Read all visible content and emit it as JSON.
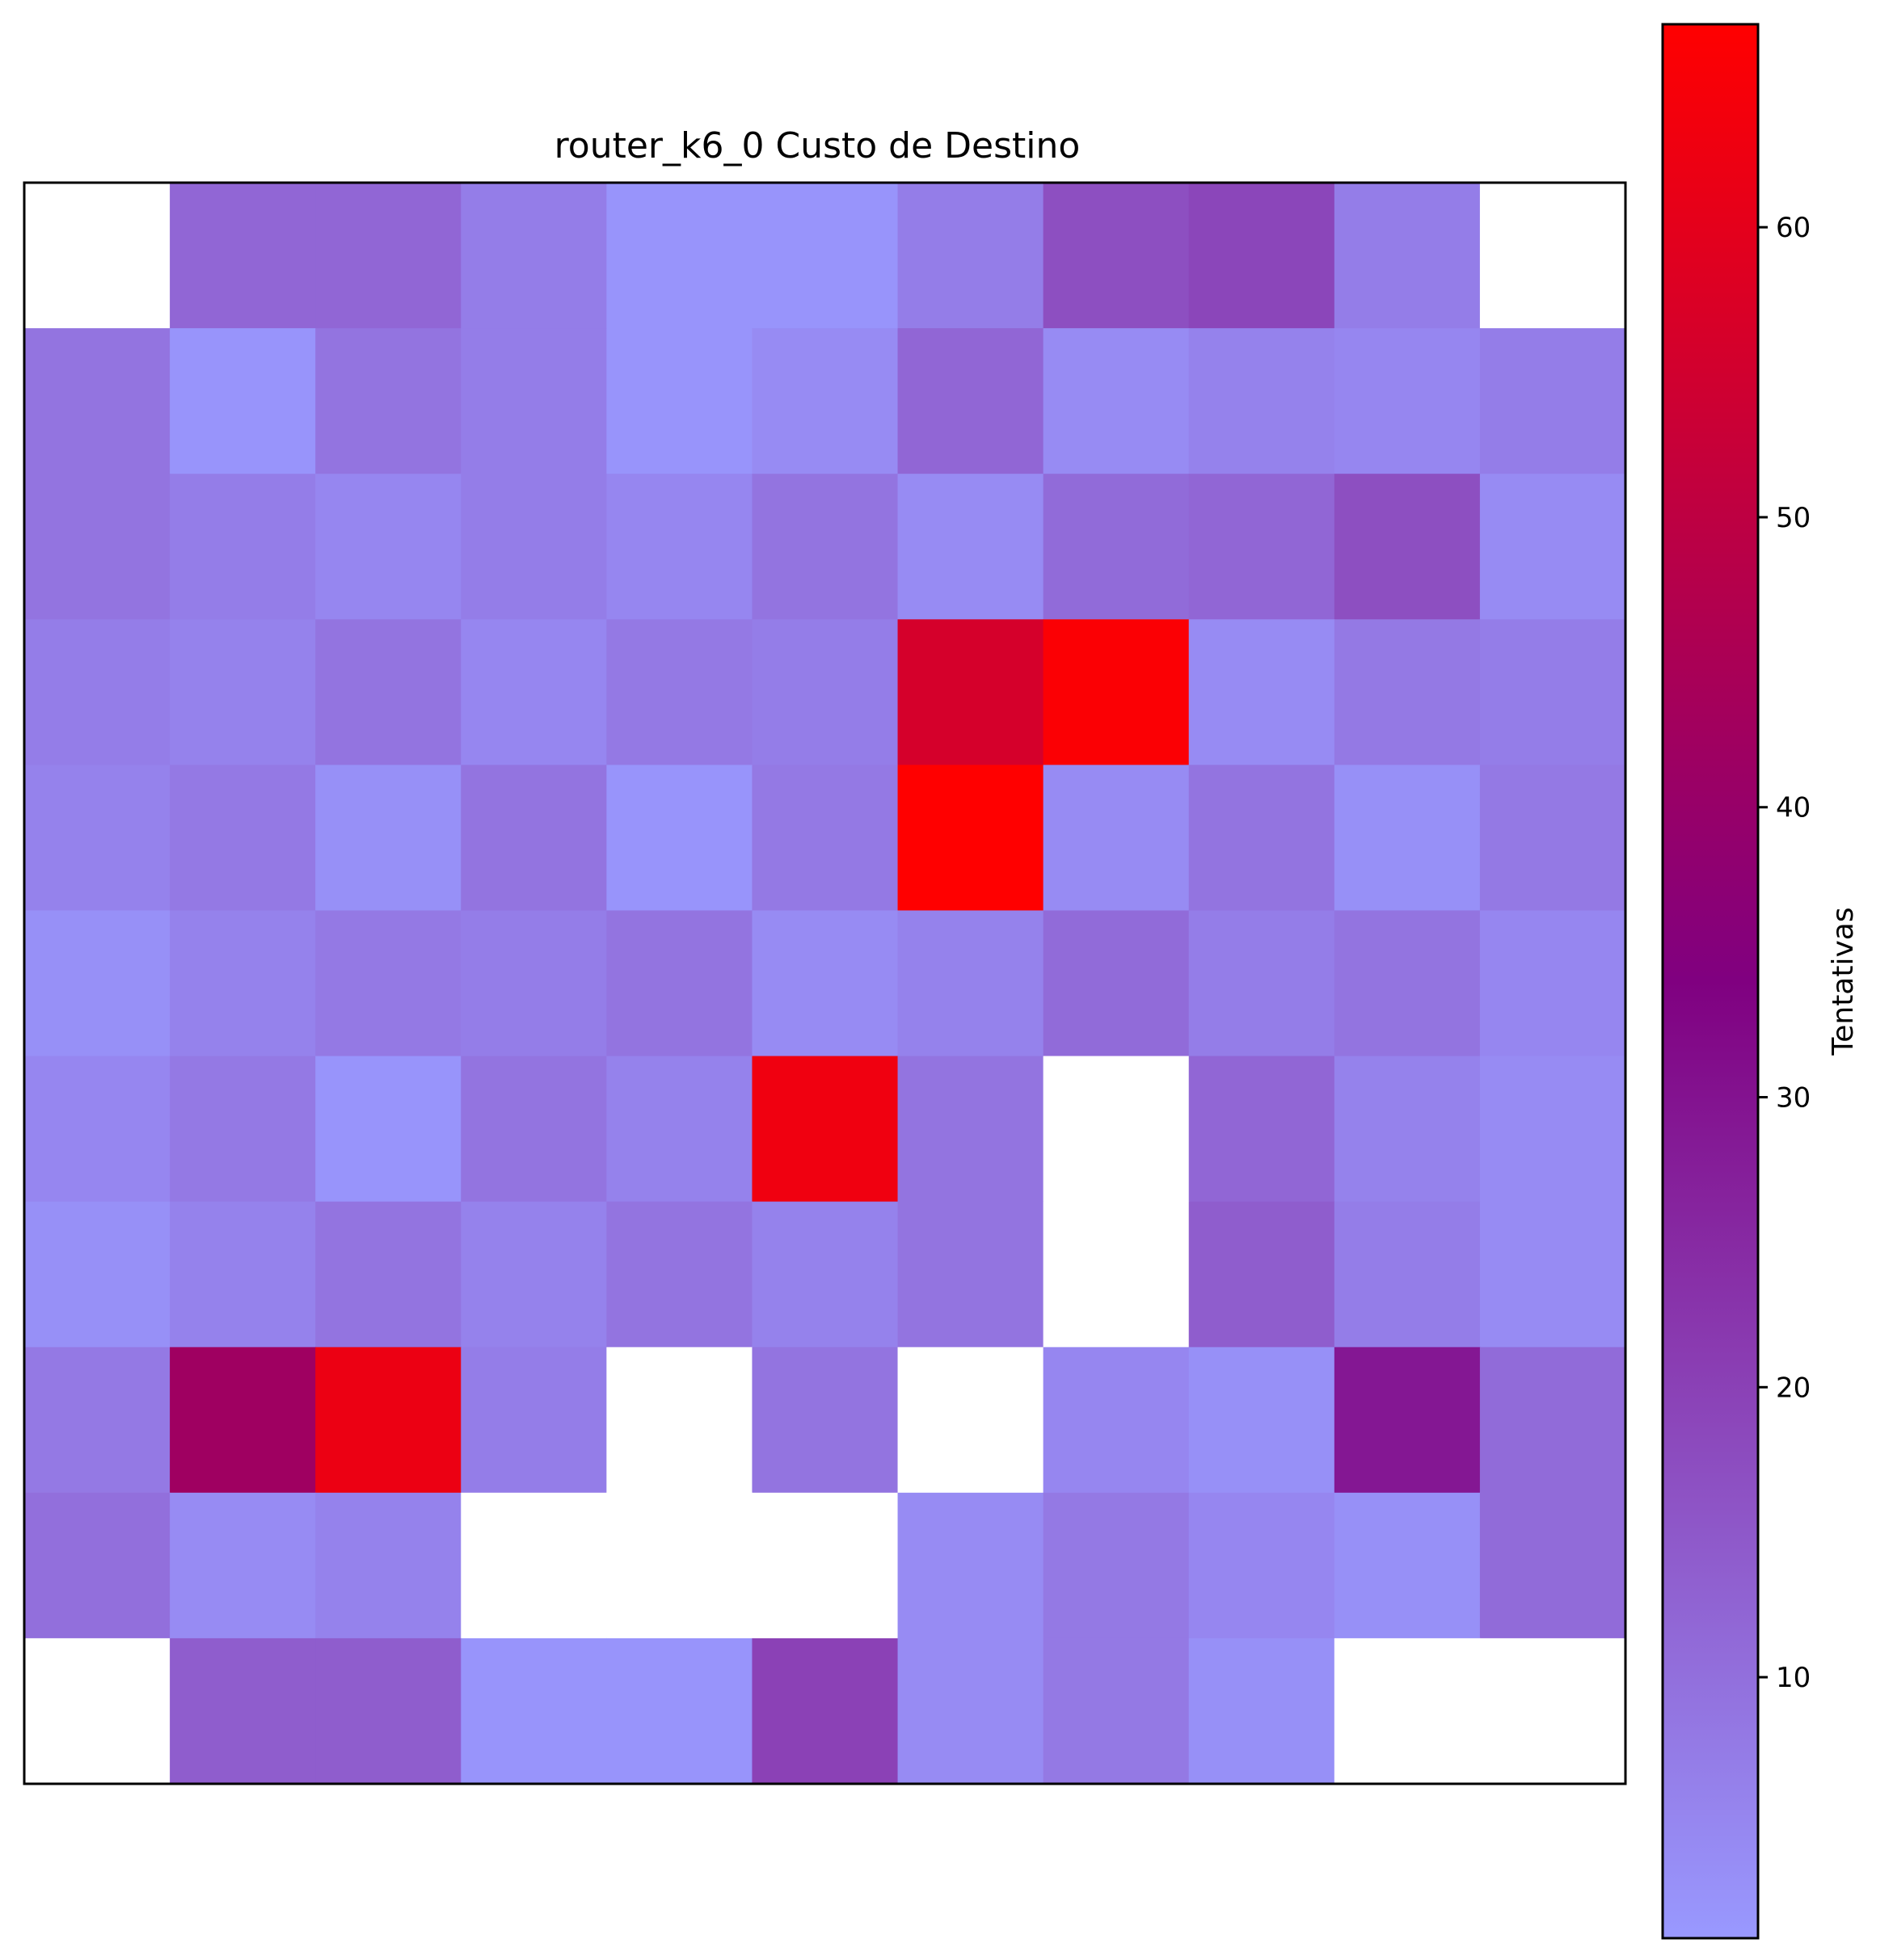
{
  "chart_data": {
    "type": "heatmap",
    "title": "router_k6_0 Custo de Destino",
    "colorbar": {
      "label": "Tentativas",
      "range": [
        1,
        67
      ],
      "ticks": [
        10,
        20,
        30,
        40,
        50,
        60
      ],
      "colormap": [
        "#9999ff",
        "#800080",
        "#ff0000"
      ]
    },
    "axes_ticks_visible": false,
    "rows": 11,
    "cols": 11,
    "missing_color": "#ffffff",
    "values": [
      [
        null,
        12,
        12,
        7,
        2,
        2,
        7,
        17,
        19,
        7,
        null
      ],
      [
        9,
        2,
        9,
        7,
        2,
        4,
        12,
        4,
        6,
        5,
        7
      ],
      [
        9,
        7,
        5,
        7,
        5,
        9,
        4,
        11,
        12,
        17,
        4
      ],
      [
        7,
        6,
        9,
        5,
        8,
        7,
        56,
        66,
        4,
        8,
        7
      ],
      [
        6,
        8,
        3,
        9,
        2,
        8,
        67,
        4,
        9,
        3,
        8
      ],
      [
        3,
        6,
        8,
        7,
        9,
        4,
        6,
        11,
        7,
        9,
        5
      ],
      [
        5,
        8,
        2,
        9,
        6,
        63,
        9,
        null,
        12,
        6,
        4
      ],
      [
        3,
        6,
        9,
        6,
        9,
        6,
        9,
        null,
        14,
        7,
        4
      ],
      [
        8,
        42,
        62,
        7,
        null,
        9,
        null,
        5,
        3,
        29,
        11
      ],
      [
        10,
        4,
        6,
        null,
        null,
        null,
        4,
        8,
        5,
        3,
        11
      ],
      [
        null,
        14,
        14,
        2,
        2,
        20,
        4,
        8,
        3,
        null,
        null
      ]
    ]
  }
}
